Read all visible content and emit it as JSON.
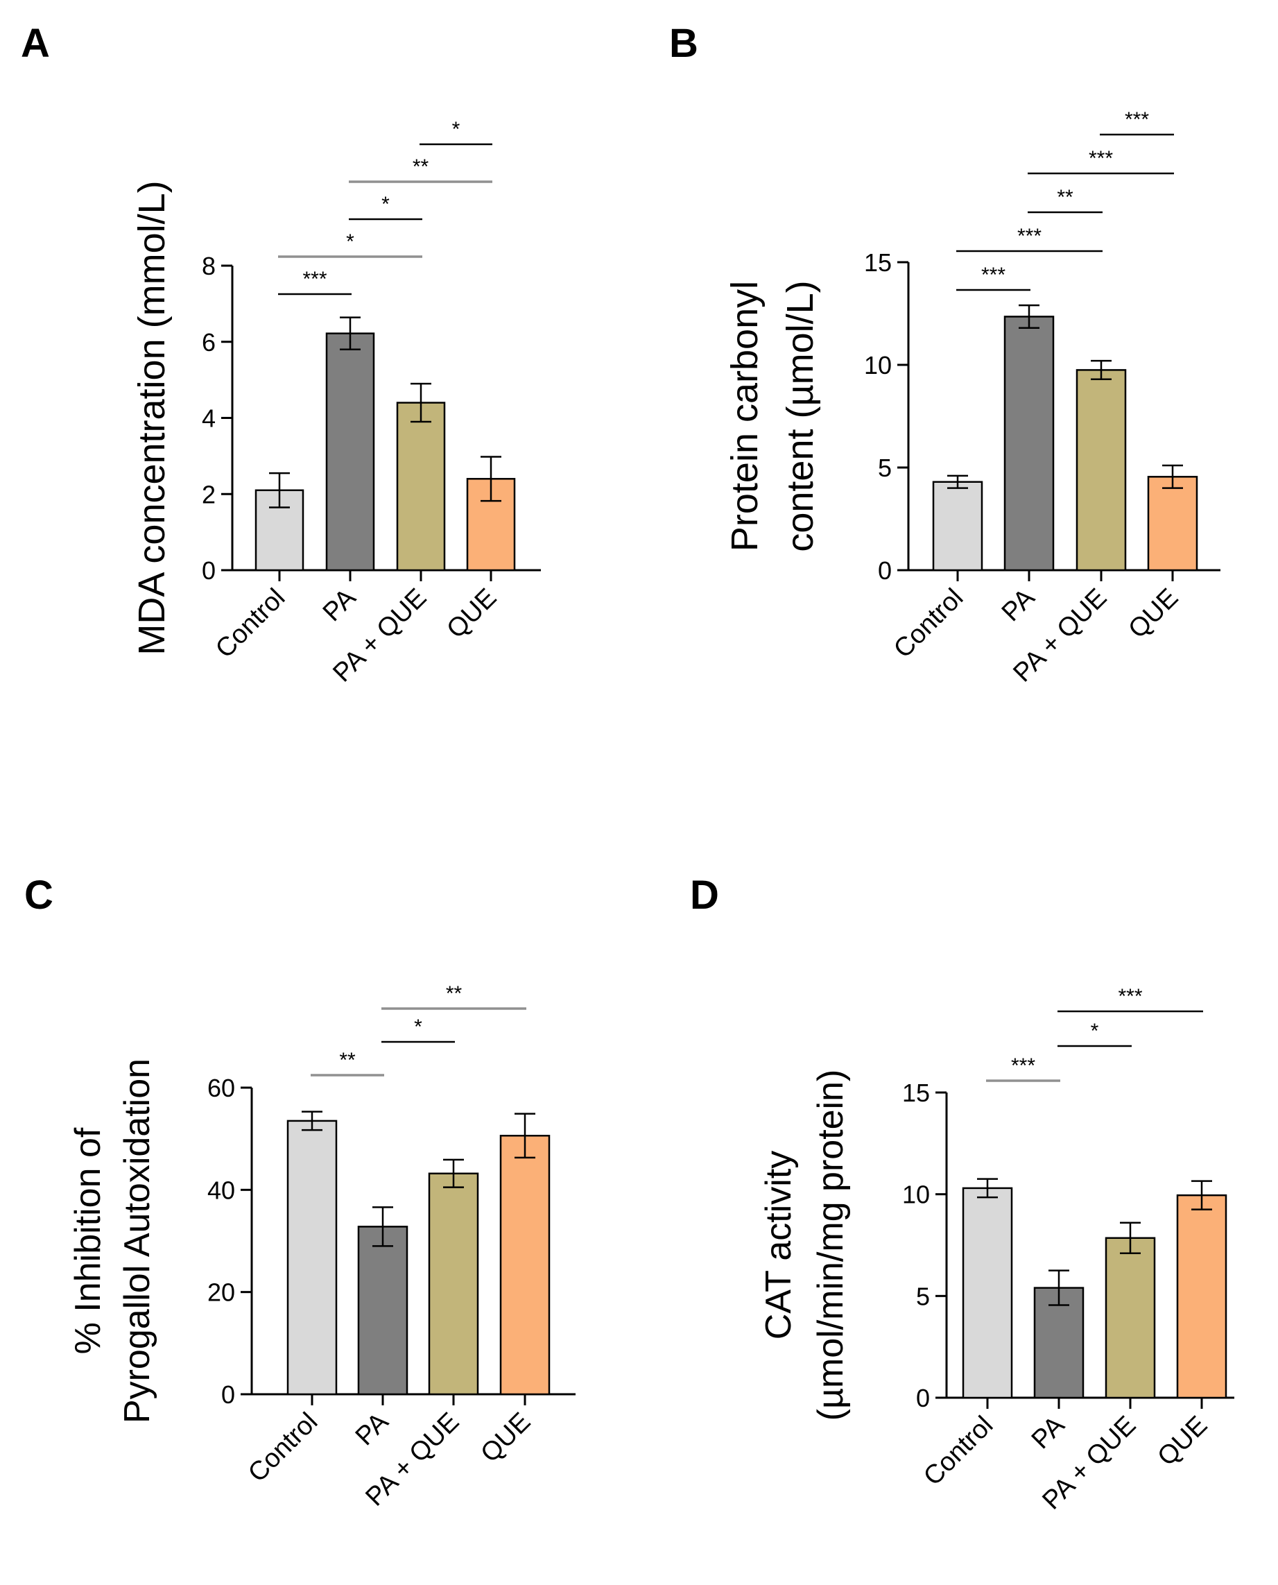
{
  "figure": {
    "description_free": true
  },
  "colors": {
    "axis": "#000000",
    "sig_dark": "#000000",
    "sig_gray": "#909090",
    "bar_outline": "#000000",
    "categories": [
      "#d9d9d9",
      "#7f7f7f",
      "#c2b57a",
      "#fbb077"
    ]
  },
  "chart_data": [
    {
      "type": "bar",
      "panel_label": "A",
      "title": "",
      "categories": [
        "Control",
        "PA",
        "PA + QUE",
        "QUE"
      ],
      "values": [
        2.1,
        6.22,
        4.4,
        2.4
      ],
      "errors": [
        0.45,
        0.42,
        0.5,
        0.58
      ],
      "ylabel": [
        "MDA concentration (mmol/L)"
      ],
      "xlabel": "",
      "ylim": [
        0,
        8
      ],
      "yticks": [
        0,
        2,
        4,
        6,
        8
      ],
      "ytick_labels": [
        "0",
        "2",
        "4",
        "6",
        "8"
      ],
      "significance": [
        {
          "from": 0,
          "to": 1,
          "level": 1,
          "label": "***",
          "style": "dark"
        },
        {
          "from": 0,
          "to": 2,
          "level": 2,
          "label": "*",
          "style": "gray"
        },
        {
          "from": 1,
          "to": 2,
          "level": 3,
          "label": "*",
          "style": "dark"
        },
        {
          "from": 1,
          "to": 3,
          "level": 4,
          "label": "**",
          "style": "gray"
        },
        {
          "from": 2,
          "to": 3,
          "level": 5,
          "label": "*",
          "style": "dark"
        }
      ]
    },
    {
      "type": "bar",
      "panel_label": "B",
      "title": "",
      "categories": [
        "Control",
        "PA",
        "PA + QUE",
        "QUE"
      ],
      "values": [
        4.3,
        12.35,
        9.75,
        4.55
      ],
      "errors": [
        0.3,
        0.55,
        0.45,
        0.55
      ],
      "ylabel": [
        "Protein carbonyl",
        "content (µmol/L)"
      ],
      "xlabel": "",
      "ylim": [
        0,
        15
      ],
      "yticks": [
        0,
        5,
        10,
        15
      ],
      "ytick_labels": [
        "0",
        "5",
        "10",
        "15"
      ],
      "significance": [
        {
          "from": 0,
          "to": 1,
          "level": 1,
          "label": "***",
          "style": "dark"
        },
        {
          "from": 0,
          "to": 2,
          "level": 2,
          "label": "***",
          "style": "dark"
        },
        {
          "from": 1,
          "to": 2,
          "level": 3,
          "label": "**",
          "style": "dark"
        },
        {
          "from": 1,
          "to": 3,
          "level": 4,
          "label": "***",
          "style": "dark"
        },
        {
          "from": 2,
          "to": 3,
          "level": 5,
          "label": "***",
          "style": "dark"
        }
      ]
    },
    {
      "type": "bar",
      "panel_label": "C",
      "title": "",
      "categories": [
        "Control",
        "PA",
        "PA + QUE",
        "QUE"
      ],
      "values": [
        53.5,
        32.8,
        43.2,
        50.6
      ],
      "errors": [
        1.8,
        3.8,
        2.7,
        4.3
      ],
      "ylabel": [
        "% Inhibition of",
        "Pyrogallol Autoxidation"
      ],
      "xlabel": "",
      "ylim": [
        0,
        60
      ],
      "yticks": [
        0,
        20,
        40,
        60
      ],
      "ytick_labels": [
        "0",
        "20",
        "40",
        "60"
      ],
      "significance": [
        {
          "from": 0,
          "to": 1,
          "level": 1,
          "label": "**",
          "style": "gray"
        },
        {
          "from": 1,
          "to": 2,
          "level": 2,
          "label": "*",
          "style": "dark"
        },
        {
          "from": 1,
          "to": 3,
          "level": 3,
          "label": "**",
          "style": "gray"
        }
      ]
    },
    {
      "type": "bar",
      "panel_label": "D",
      "title": "",
      "categories": [
        "Control",
        "PA",
        "PA + QUE",
        "QUE"
      ],
      "values": [
        10.3,
        5.4,
        7.85,
        9.95
      ],
      "errors": [
        0.45,
        0.85,
        0.75,
        0.7
      ],
      "ylabel": [
        "CAT activity",
        "(µmol/min/mg protein)"
      ],
      "xlabel": "",
      "ylim": [
        0,
        15
      ],
      "yticks": [
        0,
        5,
        10,
        15
      ],
      "ytick_labels": [
        "0",
        "5",
        "10",
        "15"
      ],
      "significance": [
        {
          "from": 0,
          "to": 1,
          "level": 1,
          "label": "***",
          "style": "gray"
        },
        {
          "from": 1,
          "to": 2,
          "level": 2,
          "label": "*",
          "style": "dark"
        },
        {
          "from": 1,
          "to": 3,
          "level": 3,
          "label": "***",
          "style": "dark"
        }
      ]
    }
  ]
}
